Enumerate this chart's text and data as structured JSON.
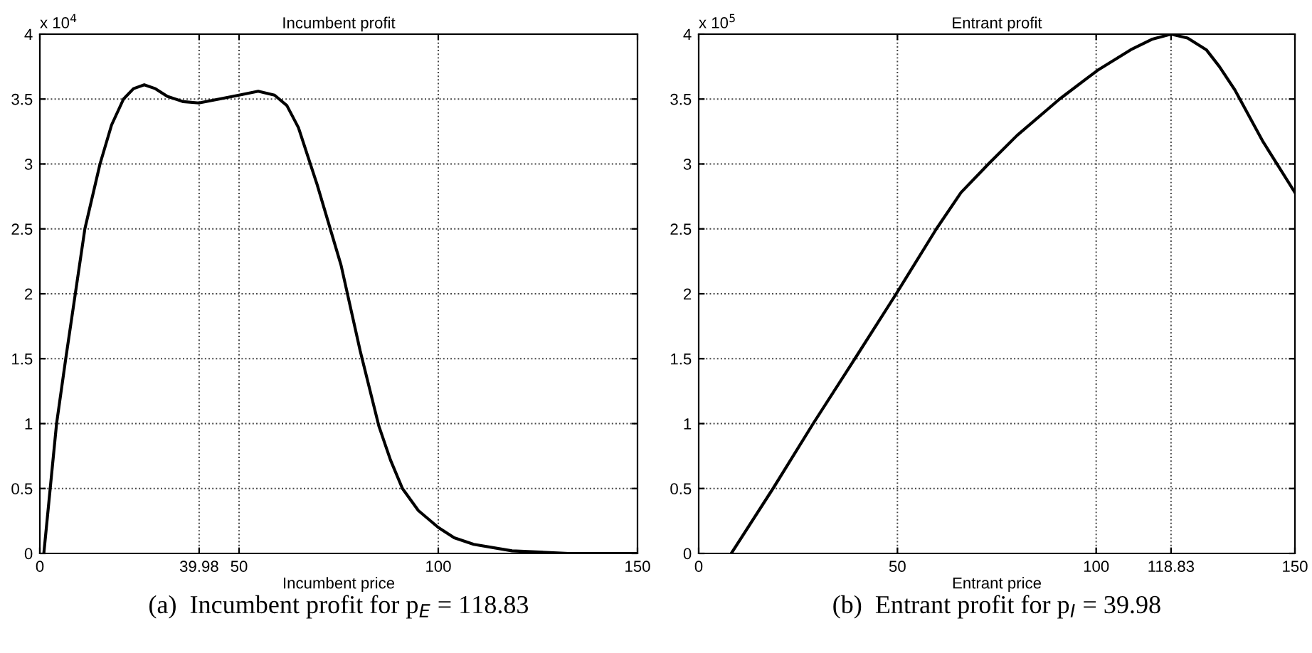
{
  "chart_data": [
    {
      "type": "line",
      "title": "Incumbent profit",
      "xlabel": "Incumbent price",
      "x": [
        1,
        2.6,
        4.2,
        6.5,
        8.9,
        11.3,
        15.1,
        18,
        21,
        23.5,
        26.2,
        29,
        32,
        36,
        39.9,
        45,
        50,
        54.8,
        58.9,
        62,
        64.9,
        69.6,
        75.6,
        80.4,
        85.1,
        88,
        91,
        95,
        100,
        104,
        108.9,
        118.5,
        132.7,
        150
      ],
      "series": [
        {
          "color": "#000000",
          "values": [
            0,
            0.5,
            1,
            1.5,
            2,
            2.5,
            3,
            3.3,
            3.5,
            3.58,
            3.61,
            3.58,
            3.52,
            3.48,
            3.47,
            3.5,
            3.53,
            3.56,
            3.53,
            3.45,
            3.28,
            2.84,
            2.22,
            1.56,
            0.98,
            0.72,
            0.5,
            0.33,
            0.2,
            0.12,
            0.07,
            0.02,
            0,
            0
          ]
        }
      ],
      "xlim": [
        0,
        150
      ],
      "xticks": [
        0,
        39.98,
        50,
        100,
        150
      ],
      "ylim": [
        0,
        4
      ],
      "yticks": [
        0,
        0.5,
        1,
        1.5,
        2,
        2.5,
        3,
        3.5,
        4
      ],
      "grid": true,
      "line_style": "solid",
      "marker": "none",
      "annotations": [
        "x 10$^{4}$",
        "(a)  Incumbent profit for p$_{E}$ = 118.83"
      ]
    },
    {
      "type": "line",
      "title": "Entrant profit",
      "xlabel": "Entrant price",
      "x": [
        8.2,
        18.7,
        28.8,
        39.3,
        49.7,
        59.8,
        66,
        72.9,
        80.1,
        90.8,
        100.3,
        108.7,
        114,
        118.83,
        123,
        127.7,
        131,
        134.9,
        142,
        150
      ],
      "series": [
        {
          "color": "#000000",
          "values": [
            0,
            0.5,
            1,
            1.5,
            2,
            2.5,
            2.78,
            3,
            3.22,
            3.5,
            3.72,
            3.88,
            3.96,
            4,
            3.97,
            3.88,
            3.75,
            3.57,
            3.17,
            2.78
          ]
        }
      ],
      "xlim": [
        0,
        150
      ],
      "xticks": [
        0,
        50,
        100,
        118.83,
        150
      ],
      "ylim": [
        0,
        4
      ],
      "yticks": [
        0,
        0.5,
        1,
        1.5,
        2,
        2.5,
        3,
        3.5,
        4
      ],
      "grid": true,
      "line_style": "solid",
      "marker": "none",
      "annotations": [
        "x 10$^{5}$",
        "(b)  Entrant profit for p$_{I}$ = 39.98"
      ]
    }
  ]
}
